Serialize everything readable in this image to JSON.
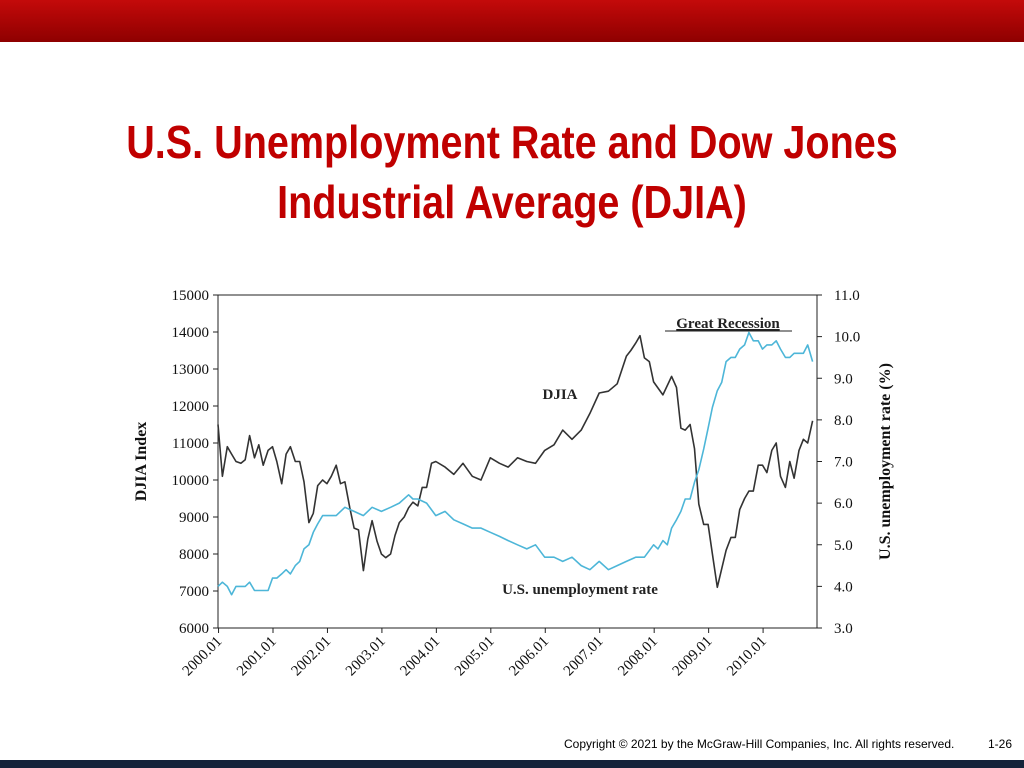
{
  "slide": {
    "title_line1": "U.S. Unemployment Rate and Dow Jones",
    "title_line2": "Industrial Average (DJIA)",
    "copyright": "Copyright © 2021 by the McGraw-Hill Companies, Inc. All rights reserved.",
    "page_number": "1-26"
  },
  "colors": {
    "accent": "#c00000",
    "header_bar": "#b00000",
    "footer_bar": "#14233a",
    "djia_line": "#333333",
    "unemployment_line": "#4db6d8"
  },
  "chart_data": {
    "type": "line",
    "ylabel_left": "DJIA Index",
    "ylabel_right": "U.S. unemployment rate (%)",
    "ylim_left": [
      6000,
      15000
    ],
    "ylim_right": [
      3.0,
      11.0
    ],
    "yticks_left": [
      "6000",
      "7000",
      "8000",
      "9000",
      "10000",
      "11000",
      "12000",
      "13000",
      "14000",
      "15000"
    ],
    "yticks_right": [
      "3.0",
      "4.0",
      "5.0",
      "6.0",
      "7.0",
      "8.0",
      "9.0",
      "10.0",
      "11.0"
    ],
    "xticks": [
      "2000.01",
      "2001.01",
      "2002.01",
      "2003.01",
      "2004.01",
      "2005.01",
      "2006.01",
      "2007.01",
      "2008.01",
      "2009.01",
      "2010.01"
    ],
    "xlim": [
      2000.0,
      2011.0
    ],
    "annotations": {
      "djia_label": "DJIA",
      "unemployment_label": "U.S. unemployment rate",
      "recession_label": "Great Recession"
    },
    "series": [
      {
        "name": "DJIA",
        "x": [
          2000.0,
          2000.08,
          2000.17,
          2000.25,
          2000.33,
          2000.42,
          2000.5,
          2000.58,
          2000.67,
          2000.75,
          2000.83,
          2000.92,
          2001.0,
          2001.08,
          2001.17,
          2001.25,
          2001.33,
          2001.42,
          2001.5,
          2001.58,
          2001.67,
          2001.75,
          2001.83,
          2001.92,
          2002.0,
          2002.08,
          2002.17,
          2002.25,
          2002.33,
          2002.42,
          2002.5,
          2002.58,
          2002.67,
          2002.75,
          2002.83,
          2002.92,
          2003.0,
          2003.08,
          2003.17,
          2003.25,
          2003.33,
          2003.42,
          2003.5,
          2003.58,
          2003.67,
          2003.75,
          2003.83,
          2003.92,
          2004.0,
          2004.17,
          2004.33,
          2004.5,
          2004.67,
          2004.83,
          2005.0,
          2005.17,
          2005.33,
          2005.5,
          2005.67,
          2005.83,
          2006.0,
          2006.17,
          2006.33,
          2006.5,
          2006.67,
          2006.83,
          2007.0,
          2007.17,
          2007.33,
          2007.5,
          2007.58,
          2007.67,
          2007.75,
          2007.83,
          2007.92,
          2008.0,
          2008.17,
          2008.33,
          2008.42,
          2008.5,
          2008.58,
          2008.67,
          2008.75,
          2008.83,
          2008.92,
          2009.0,
          2009.08,
          2009.17,
          2009.25,
          2009.33,
          2009.42,
          2009.5,
          2009.58,
          2009.67,
          2009.75,
          2009.83,
          2009.92,
          2010.0,
          2010.08,
          2010.17,
          2010.25,
          2010.33,
          2010.42,
          2010.5,
          2010.58,
          2010.67,
          2010.75,
          2010.83,
          2010.92
        ],
        "values": [
          11500,
          10100,
          10900,
          10700,
          10500,
          10450,
          10550,
          11200,
          10600,
          10950,
          10400,
          10800,
          10900,
          10500,
          9900,
          10700,
          10900,
          10500,
          10500,
          9950,
          8850,
          9100,
          9850,
          10000,
          9900,
          10100,
          10400,
          9900,
          9950,
          9250,
          8700,
          8650,
          7550,
          8400,
          8900,
          8350,
          8000,
          7900,
          8000,
          8500,
          8850,
          9000,
          9250,
          9400,
          9300,
          9800,
          9800,
          10450,
          10500,
          10350,
          10150,
          10450,
          10100,
          10000,
          10600,
          10450,
          10350,
          10600,
          10500,
          10450,
          10800,
          10950,
          11350,
          11100,
          11350,
          11800,
          12350,
          12400,
          12600,
          13350,
          13500,
          13700,
          13900,
          13300,
          13200,
          12650,
          12300,
          12800,
          12500,
          11400,
          11350,
          11500,
          10850,
          9350,
          8800,
          8800,
          8000,
          7100,
          7600,
          8100,
          8450,
          8450,
          9200,
          9500,
          9700,
          9700,
          10400,
          10400,
          10200,
          10800,
          11000,
          10100,
          9800,
          10500,
          10050,
          10800,
          11100,
          11000,
          11600
        ]
      },
      {
        "name": "U.S. unemployment rate",
        "x": [
          2000.0,
          2000.08,
          2000.17,
          2000.25,
          2000.33,
          2000.42,
          2000.5,
          2000.58,
          2000.67,
          2000.75,
          2000.83,
          2000.92,
          2001.0,
          2001.08,
          2001.17,
          2001.25,
          2001.33,
          2001.42,
          2001.5,
          2001.58,
          2001.67,
          2001.75,
          2001.83,
          2001.92,
          2002.0,
          2002.17,
          2002.33,
          2002.5,
          2002.67,
          2002.83,
          2003.0,
          2003.17,
          2003.33,
          2003.5,
          2003.58,
          2003.67,
          2003.83,
          2004.0,
          2004.17,
          2004.33,
          2004.5,
          2004.67,
          2004.83,
          2005.0,
          2005.17,
          2005.33,
          2005.5,
          2005.67,
          2005.83,
          2006.0,
          2006.17,
          2006.33,
          2006.5,
          2006.67,
          2006.83,
          2007.0,
          2007.17,
          2007.33,
          2007.5,
          2007.67,
          2007.83,
          2008.0,
          2008.08,
          2008.17,
          2008.25,
          2008.33,
          2008.42,
          2008.5,
          2008.58,
          2008.67,
          2008.75,
          2008.83,
          2008.92,
          2009.0,
          2009.08,
          2009.17,
          2009.25,
          2009.33,
          2009.42,
          2009.5,
          2009.58,
          2009.67,
          2009.75,
          2009.83,
          2009.92,
          2010.0,
          2010.08,
          2010.17,
          2010.25,
          2010.33,
          2010.42,
          2010.5,
          2010.58,
          2010.67,
          2010.75,
          2010.83,
          2010.92
        ],
        "values": [
          4.0,
          4.1,
          4.0,
          3.8,
          4.0,
          4.0,
          4.0,
          4.1,
          3.9,
          3.9,
          3.9,
          3.9,
          4.2,
          4.2,
          4.3,
          4.4,
          4.3,
          4.5,
          4.6,
          4.9,
          5.0,
          5.3,
          5.5,
          5.7,
          5.7,
          5.7,
          5.9,
          5.8,
          5.7,
          5.9,
          5.8,
          5.9,
          6.0,
          6.2,
          6.1,
          6.1,
          6.0,
          5.7,
          5.8,
          5.6,
          5.5,
          5.4,
          5.4,
          5.3,
          5.2,
          5.1,
          5.0,
          4.9,
          5.0,
          4.7,
          4.7,
          4.6,
          4.7,
          4.5,
          4.4,
          4.6,
          4.4,
          4.5,
          4.6,
          4.7,
          4.7,
          5.0,
          4.9,
          5.1,
          5.0,
          5.4,
          5.6,
          5.8,
          6.1,
          6.1,
          6.5,
          6.8,
          7.3,
          7.8,
          8.3,
          8.7,
          8.9,
          9.4,
          9.5,
          9.5,
          9.7,
          9.8,
          10.1,
          9.9,
          9.9,
          9.7,
          9.8,
          9.8,
          9.9,
          9.7,
          9.5,
          9.5,
          9.6,
          9.6,
          9.6,
          9.8,
          9.4
        ]
      }
    ]
  }
}
